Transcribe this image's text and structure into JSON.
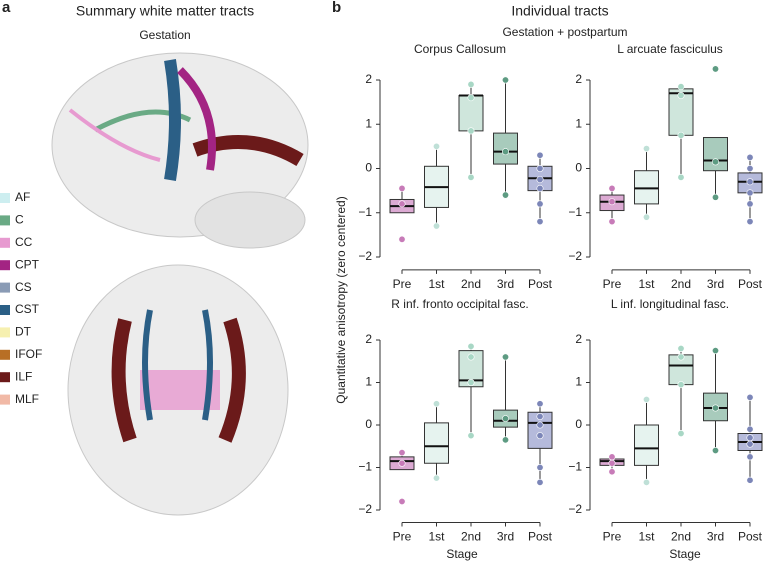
{
  "panel_a": {
    "label": "a",
    "title": "Summary white matter tracts",
    "subtitle": "Gestation",
    "legend": [
      {
        "label": "AF",
        "color": "#cdeef0"
      },
      {
        "label": "C",
        "color": "#6aaa85"
      },
      {
        "label": "CC",
        "color": "#e79ad0"
      },
      {
        "label": "CPT",
        "color": "#a32483"
      },
      {
        "label": "CS",
        "color": "#8a9bb5"
      },
      {
        "label": "CST",
        "color": "#2b5f86"
      },
      {
        "label": "DT",
        "color": "#f6f0b0"
      },
      {
        "label": "IFOF",
        "color": "#b86f25"
      },
      {
        "label": "ILF",
        "color": "#6b1a1a"
      },
      {
        "label": "MLF",
        "color": "#f1b9a6"
      }
    ]
  },
  "panel_b": {
    "label": "b",
    "title": "Individual tracts",
    "subtitle": "Gestation + postpartum",
    "y_label": "Quantitative anisotropy (zero centered)",
    "x_label": "Stage"
  },
  "chart_data": [
    {
      "type": "box",
      "title": "Corpus Callosum",
      "categories": [
        "Pre",
        "1st",
        "2nd",
        "3rd",
        "Post"
      ],
      "colors": [
        "#dcaad3",
        "#e6f3ef",
        "#cfe6dc",
        "#a8cbbc",
        "#b5badb"
      ],
      "point_colors": [
        "#c77bb8",
        "#bfe0d7",
        "#a8d7c5",
        "#5d9b82",
        "#7c86b8"
      ],
      "ylim": [
        -2.2,
        2.3
      ],
      "yticks": [
        {
          "value": -2,
          "label": "−2"
        },
        {
          "value": -1,
          "label": "−1"
        },
        0,
        1,
        2
      ],
      "boxes": [
        {
          "whisker_low": -1.0,
          "q1": -1.0,
          "median": -0.85,
          "q3": -0.7,
          "whisker_high": -0.45,
          "points": [
            -0.45,
            -0.8,
            -1.6
          ]
        },
        {
          "whisker_low": -1.3,
          "q1": -0.88,
          "median": -0.42,
          "q3": 0.05,
          "whisker_high": 0.5,
          "points": [
            0.5,
            -1.3
          ]
        },
        {
          "whisker_low": -0.2,
          "q1": 0.85,
          "median": 1.65,
          "q3": 1.65,
          "whisker_high": 1.9,
          "points": [
            1.9,
            1.6,
            0.85,
            -0.2
          ]
        },
        {
          "whisker_low": -0.6,
          "q1": 0.1,
          "median": 0.38,
          "q3": 0.8,
          "whisker_high": 2.0,
          "points": [
            2.0,
            0.38,
            -0.6
          ]
        },
        {
          "whisker_low": -1.2,
          "q1": -0.5,
          "median": -0.22,
          "q3": 0.05,
          "whisker_high": 0.35,
          "points": [
            0.3,
            0.0,
            -0.25,
            -0.45,
            -0.8,
            -1.2
          ]
        }
      ]
    },
    {
      "type": "box",
      "title": "L arcuate fasciculus",
      "categories": [
        "Pre",
        "1st",
        "2nd",
        "3rd",
        "Post"
      ],
      "colors": [
        "#dcaad3",
        "#e6f3ef",
        "#cfe6dc",
        "#a8cbbc",
        "#b5badb"
      ],
      "point_colors": [
        "#c77bb8",
        "#bfe0d7",
        "#a8d7c5",
        "#5d9b82",
        "#7c86b8"
      ],
      "ylim": [
        -2.2,
        2.3
      ],
      "yticks": [
        {
          "value": -2,
          "label": "−2"
        },
        {
          "value": -1,
          "label": "−1"
        },
        0,
        1,
        2
      ],
      "boxes": [
        {
          "whisker_low": -1.2,
          "q1": -0.95,
          "median": -0.75,
          "q3": -0.6,
          "whisker_high": -0.45,
          "points": [
            -0.45,
            -0.75,
            -1.2
          ]
        },
        {
          "whisker_low": -1.1,
          "q1": -0.8,
          "median": -0.45,
          "q3": -0.05,
          "whisker_high": 0.45,
          "points": [
            0.45,
            -1.1
          ]
        },
        {
          "whisker_low": -0.2,
          "q1": 0.75,
          "median": 1.7,
          "q3": 1.8,
          "whisker_high": 1.85,
          "points": [
            1.85,
            1.65,
            0.75,
            -0.2
          ]
        },
        {
          "whisker_low": -0.65,
          "q1": -0.05,
          "median": 0.18,
          "q3": 0.7,
          "whisker_high": 0.7,
          "points": [
            2.25,
            0.15,
            -0.65
          ]
        },
        {
          "whisker_low": -1.2,
          "q1": -0.55,
          "median": -0.3,
          "q3": -0.1,
          "whisker_high": 0.25,
          "points": [
            0.25,
            0.0,
            -0.3,
            -0.55,
            -0.8,
            -1.2
          ]
        }
      ]
    },
    {
      "type": "box",
      "title": "R inf. fronto occipital fasc.",
      "categories": [
        "Pre",
        "1st",
        "2nd",
        "3rd",
        "Post"
      ],
      "colors": [
        "#dcaad3",
        "#e6f3ef",
        "#cfe6dc",
        "#a8cbbc",
        "#b5badb"
      ],
      "point_colors": [
        "#c77bb8",
        "#bfe0d7",
        "#a8d7c5",
        "#5d9b82",
        "#7c86b8"
      ],
      "ylim": [
        -2.2,
        2.3
      ],
      "yticks": [
        {
          "value": -2,
          "label": "−2"
        },
        {
          "value": -1,
          "label": "−1"
        },
        0,
        1,
        2
      ],
      "boxes": [
        {
          "whisker_low": -1.05,
          "q1": -1.05,
          "median": -0.85,
          "q3": -0.75,
          "whisker_high": -0.65,
          "points": [
            -0.65,
            -0.9,
            -1.8
          ]
        },
        {
          "whisker_low": -1.25,
          "q1": -0.9,
          "median": -0.5,
          "q3": 0.05,
          "whisker_high": 0.5,
          "points": [
            0.5,
            -1.25
          ]
        },
        {
          "whisker_low": -0.25,
          "q1": 0.9,
          "median": 1.05,
          "q3": 1.75,
          "whisker_high": 1.85,
          "points": [
            1.85,
            1.6,
            1.0,
            -0.25
          ]
        },
        {
          "whisker_low": -0.35,
          "q1": -0.05,
          "median": 0.1,
          "q3": 0.35,
          "whisker_high": 1.6,
          "points": [
            1.6,
            0.15,
            -0.35
          ]
        },
        {
          "whisker_low": -1.35,
          "q1": -0.55,
          "median": 0.05,
          "q3": 0.3,
          "whisker_high": 0.5,
          "points": [
            0.5,
            0.2,
            0.0,
            -0.25,
            -1.0,
            -1.35
          ]
        }
      ]
    },
    {
      "type": "box",
      "title": "L inf. longitudinal fasc.",
      "categories": [
        "Pre",
        "1st",
        "2nd",
        "3rd",
        "Post"
      ],
      "colors": [
        "#dcaad3",
        "#e6f3ef",
        "#cfe6dc",
        "#a8cbbc",
        "#b5badb"
      ],
      "point_colors": [
        "#c77bb8",
        "#bfe0d7",
        "#a8d7c5",
        "#5d9b82",
        "#7c86b8"
      ],
      "ylim": [
        -2.2,
        2.3
      ],
      "yticks": [
        {
          "value": -2,
          "label": "−2"
        },
        {
          "value": -1,
          "label": "−1"
        },
        0,
        1,
        2
      ],
      "boxes": [
        {
          "whisker_low": -1.1,
          "q1": -0.95,
          "median": -0.85,
          "q3": -0.8,
          "whisker_high": -0.75,
          "points": [
            -0.75,
            -0.9,
            -1.1
          ]
        },
        {
          "whisker_low": -1.35,
          "q1": -0.95,
          "median": -0.55,
          "q3": 0.0,
          "whisker_high": 0.6,
          "points": [
            0.6,
            -1.35
          ]
        },
        {
          "whisker_low": -0.2,
          "q1": 0.95,
          "median": 1.4,
          "q3": 1.65,
          "whisker_high": 1.8,
          "points": [
            1.8,
            1.6,
            0.95,
            -0.2
          ]
        },
        {
          "whisker_low": -0.6,
          "q1": 0.1,
          "median": 0.4,
          "q3": 0.75,
          "whisker_high": 1.75,
          "points": [
            1.75,
            0.4,
            -0.6
          ]
        },
        {
          "whisker_low": -1.3,
          "q1": -0.6,
          "median": -0.4,
          "q3": -0.2,
          "whisker_high": 0.65,
          "points": [
            0.65,
            -0.1,
            -0.3,
            -0.45,
            -0.75,
            -1.3
          ]
        }
      ]
    }
  ]
}
